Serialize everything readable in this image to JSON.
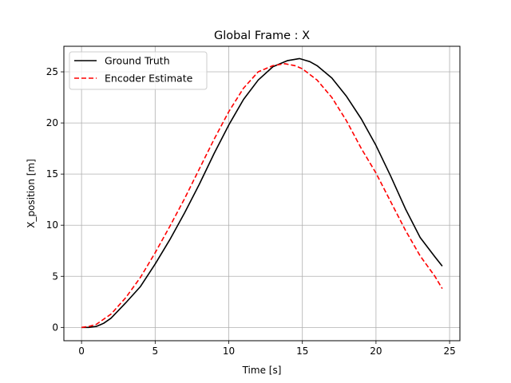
{
  "chart_data": {
    "type": "line",
    "title": "Global Frame : X",
    "xlabel": "Time [s]",
    "ylabel": "X_position [m]",
    "xlim": [
      -1.2,
      25.7
    ],
    "ylim": [
      -1.3,
      27.5
    ],
    "xticks": [
      0,
      5,
      10,
      15,
      20,
      25
    ],
    "yticks": [
      0,
      5,
      10,
      15,
      20,
      25
    ],
    "grid": true,
    "legend_position": "top-left",
    "series": [
      {
        "name": "Ground Truth",
        "color": "#000000",
        "style": "solid",
        "x": [
          0,
          0.5,
          1,
          1.5,
          2,
          3,
          4,
          5,
          6,
          7,
          8,
          9,
          10,
          11,
          12,
          13,
          14,
          14.8,
          15.5,
          16,
          17,
          18,
          19,
          20,
          21,
          22,
          23,
          24,
          24.5
        ],
        "y": [
          0,
          0,
          0.1,
          0.4,
          0.9,
          2.4,
          4.0,
          6.2,
          8.6,
          11.2,
          14.0,
          17.0,
          19.8,
          22.3,
          24.2,
          25.5,
          26.1,
          26.3,
          26.0,
          25.6,
          24.4,
          22.6,
          20.4,
          17.8,
          14.8,
          11.6,
          8.8,
          6.9,
          6.0
        ]
      },
      {
        "name": "Encoder Estimate",
        "color": "#ff0000",
        "style": "dashed",
        "x": [
          0,
          0.5,
          1,
          2,
          3,
          4,
          5,
          6,
          7,
          8,
          9,
          10,
          11,
          12,
          13,
          13.8,
          14.5,
          15,
          16,
          17,
          18,
          19,
          20,
          21,
          22,
          23,
          24,
          24.5
        ],
        "y": [
          0,
          0.1,
          0.3,
          1.3,
          2.9,
          4.9,
          7.3,
          9.9,
          12.6,
          15.5,
          18.4,
          21.1,
          23.4,
          25.0,
          25.6,
          25.8,
          25.6,
          25.3,
          24.2,
          22.5,
          20.2,
          17.5,
          15.1,
          12.3,
          9.5,
          7.0,
          5.0,
          3.8
        ]
      }
    ]
  }
}
